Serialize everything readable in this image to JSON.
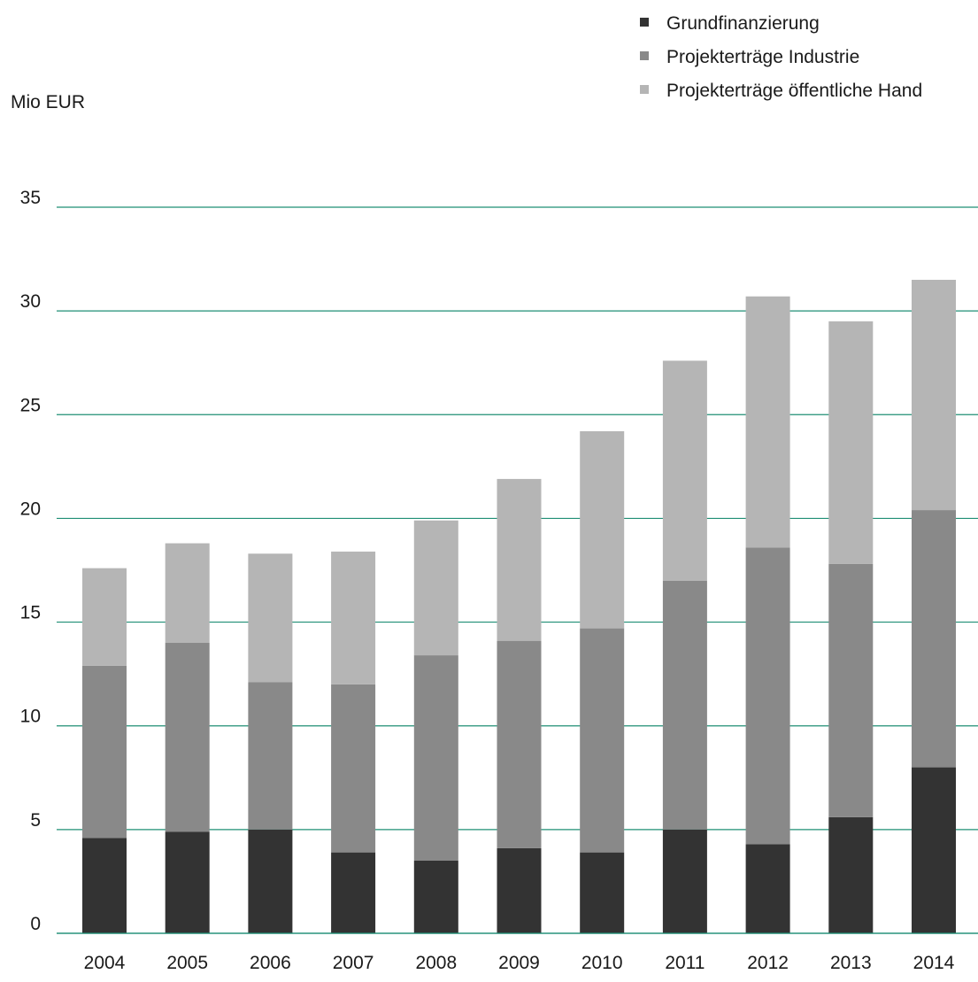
{
  "colors": {
    "grid": "#1f8f75",
    "axis": "#1f8f75",
    "text": "#1a1a1a",
    "background": "#ffffff"
  },
  "chart_data": {
    "type": "bar",
    "stacked": true,
    "unit_label": "Mio EUR",
    "categories": [
      "2004",
      "2005",
      "2006",
      "2007",
      "2008",
      "2009",
      "2010",
      "2011",
      "2012",
      "2013",
      "2014"
    ],
    "series": [
      {
        "name": "Grundfinanzierung",
        "color": "#333333",
        "values": [
          4.6,
          4.9,
          5.0,
          3.9,
          3.5,
          4.1,
          3.9,
          5.0,
          4.3,
          5.6,
          8.0
        ]
      },
      {
        "name": "Projekterträge Industrie",
        "color": "#898989",
        "values": [
          8.3,
          9.1,
          7.1,
          8.1,
          9.9,
          10.0,
          10.8,
          12.0,
          14.3,
          12.2,
          12.4
        ]
      },
      {
        "name": "Projekterträge öffentliche Hand",
        "color": "#b5b5b5",
        "values": [
          4.7,
          4.8,
          6.2,
          6.4,
          6.5,
          7.8,
          9.5,
          10.6,
          12.1,
          11.7,
          11.1
        ]
      }
    ],
    "y_ticks": [
      0,
      5,
      10,
      15,
      20,
      25,
      30,
      35
    ],
    "ylim": [
      0,
      35
    ],
    "grid": true,
    "legend_position": "top-right"
  }
}
